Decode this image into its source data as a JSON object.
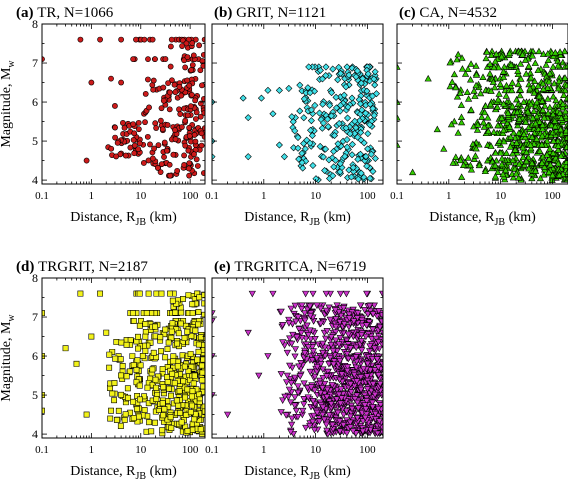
{
  "chart_data": [
    {
      "type": "scatter",
      "panel_label": "(a)",
      "title": "TR, N=1066",
      "xlabel": "Distance, R_JB (km)",
      "ylabel": "Magnitude, M_w",
      "xscale": "log",
      "xlim": [
        0.1,
        200
      ],
      "ylim": [
        3.9,
        8
      ],
      "xticks": [
        "0.1",
        "1",
        "10",
        "100"
      ],
      "yticks": [
        "4",
        "5",
        "6",
        "7",
        "8"
      ],
      "marker": "circle",
      "color": "#cc1a1a",
      "series": [
        {
          "x": 0.1,
          "y": 7.1
        },
        {
          "x": 0.6,
          "y": 7.6
        },
        {
          "x": 0.8,
          "y": 4.5
        },
        {
          "x": 1.0,
          "y": 6.5
        },
        {
          "x": 1.5,
          "y": 7.6
        },
        {
          "x": 2.5,
          "y": 6.6
        },
        {
          "x": 4.0,
          "y": 6.5
        },
        {
          "x": 4.0,
          "y": 7.6
        },
        {
          "x": 7.0,
          "y": 7.1
        },
        {
          "x": 8.0,
          "y": 7.6
        },
        {
          "x": 3.0,
          "y": 5.9
        }
      ],
      "density_regions": [
        {
          "x_range": [
            10,
            200
          ],
          "y_range": [
            4.1,
            6.6
          ],
          "n": 180
        },
        {
          "x_range": [
            2,
            10
          ],
          "y_range": [
            4.6,
            5.5
          ],
          "n": 45
        },
        {
          "x_range": [
            30,
            200
          ],
          "y_range": [
            6.8,
            7.6
          ],
          "n": 24
        }
      ],
      "x_lines": [
        7.6,
        7.1
      ]
    },
    {
      "type": "scatter",
      "panel_label": "(b)",
      "title": "GRIT, N=1121",
      "xlabel": "Distance, R_JB (km)",
      "ylabel": "",
      "xscale": "log",
      "xlim": [
        0.1,
        200
      ],
      "ylim": [
        3.9,
        8
      ],
      "xticks": [
        "0.1",
        "1",
        "10",
        "100"
      ],
      "yticks": [],
      "marker": "diamond",
      "color": "#40e0e8",
      "series": [
        {
          "x": 0.1,
          "y": 6.0
        },
        {
          "x": 0.1,
          "y": 5.0
        },
        {
          "x": 0.1,
          "y": 4.6
        },
        {
          "x": 0.4,
          "y": 6.1
        },
        {
          "x": 0.5,
          "y": 5.6
        },
        {
          "x": 0.5,
          "y": 4.6
        },
        {
          "x": 0.9,
          "y": 6.1
        },
        {
          "x": 1.2,
          "y": 6.3
        },
        {
          "x": 1.5,
          "y": 5.7
        },
        {
          "x": 2.0,
          "y": 6.3
        },
        {
          "x": 2.0,
          "y": 4.9
        },
        {
          "x": 2.5,
          "y": 4.6
        }
      ],
      "density_regions": [
        {
          "x_range": [
            10,
            150
          ],
          "y_range": [
            4.0,
            6.9
          ],
          "n": 230
        },
        {
          "x_range": [
            3,
            10
          ],
          "y_range": [
            4.3,
            6.5
          ],
          "n": 50
        }
      ],
      "x_lines": [
        6.9
      ]
    },
    {
      "type": "scatter",
      "panel_label": "(c)",
      "title": "CA, N=4532",
      "xlabel": "Distance, R_JB (km)",
      "ylabel": "",
      "xscale": "log",
      "xlim": [
        0.1,
        200
      ],
      "ylim": [
        3.9,
        8
      ],
      "xticks": [
        "0.1",
        "1",
        "10",
        "100"
      ],
      "yticks": [],
      "marker": "triangle-up",
      "color": "#33cc00",
      "series": [
        {
          "x": 0.1,
          "y": 6.9
        },
        {
          "x": 0.1,
          "y": 6.0
        },
        {
          "x": 0.1,
          "y": 5.6
        },
        {
          "x": 0.1,
          "y": 4.9
        },
        {
          "x": 0.2,
          "y": 4.2
        },
        {
          "x": 0.4,
          "y": 6.6
        },
        {
          "x": 0.6,
          "y": 5.3
        },
        {
          "x": 0.8,
          "y": 4.8
        }
      ],
      "density_regions": [
        {
          "x_range": [
            1,
            200
          ],
          "y_range": [
            4.0,
            7.3
          ],
          "n": 380
        },
        {
          "x_range": [
            10,
            200
          ],
          "y_range": [
            4.0,
            5.8
          ],
          "n": 200
        }
      ],
      "x_lines": [
        7.3,
        7.2,
        6.9,
        6.6,
        6.3,
        6.0,
        5.9,
        5.6,
        5.4,
        5.2,
        4.9,
        4.7,
        4.5,
        4.3
      ]
    },
    {
      "type": "scatter",
      "panel_label": "(d)",
      "title": "TRGRIT, N=2187",
      "xlabel": "Distance, R_JB (km)",
      "ylabel": "Magnitude, M_w",
      "xscale": "log",
      "xlim": [
        0.1,
        200
      ],
      "ylim": [
        3.9,
        8
      ],
      "xticks": [
        "0.1",
        "1",
        "10",
        "100"
      ],
      "yticks": [
        "4",
        "5",
        "6",
        "7",
        "8"
      ],
      "marker": "square",
      "color": "#f2f21a",
      "series": [
        {
          "x": 0.1,
          "y": 7.1
        },
        {
          "x": 0.1,
          "y": 6.0
        },
        {
          "x": 0.1,
          "y": 5.0
        },
        {
          "x": 0.1,
          "y": 4.6
        },
        {
          "x": 0.3,
          "y": 6.2
        },
        {
          "x": 0.5,
          "y": 5.8
        },
        {
          "x": 0.6,
          "y": 7.6
        },
        {
          "x": 0.8,
          "y": 4.5
        },
        {
          "x": 1.0,
          "y": 6.5
        },
        {
          "x": 1.5,
          "y": 7.6
        },
        {
          "x": 2.0,
          "y": 6.6
        },
        {
          "x": 2.5,
          "y": 4.6
        }
      ],
      "density_regions": [
        {
          "x_range": [
            8,
            200
          ],
          "y_range": [
            4.0,
            6.9
          ],
          "n": 360
        },
        {
          "x_range": [
            2,
            10
          ],
          "y_range": [
            4.2,
            6.5
          ],
          "n": 70
        },
        {
          "x_range": [
            30,
            200
          ],
          "y_range": [
            7.0,
            7.6
          ],
          "n": 24
        }
      ],
      "x_lines": [
        7.6,
        7.1,
        6.9
      ]
    },
    {
      "type": "scatter",
      "panel_label": "(e)",
      "title": "TRGRITCA, N=6719",
      "xlabel": "Distance, R_JB (km)",
      "ylabel": "",
      "xscale": "log",
      "xlim": [
        0.1,
        200
      ],
      "ylim": [
        3.9,
        8
      ],
      "xticks": [
        "0.1",
        "1",
        "10",
        "100"
      ],
      "yticks": [],
      "marker": "triangle-down",
      "color": "#cc33cc",
      "series": [
        {
          "x": 0.1,
          "y": 7.1
        },
        {
          "x": 0.1,
          "y": 6.9
        },
        {
          "x": 0.1,
          "y": 6.0
        },
        {
          "x": 0.1,
          "y": 5.0
        },
        {
          "x": 0.2,
          "y": 4.5
        },
        {
          "x": 0.5,
          "y": 6.6
        },
        {
          "x": 0.6,
          "y": 7.6
        },
        {
          "x": 0.8,
          "y": 5.5
        },
        {
          "x": 1.2,
          "y": 6.0
        },
        {
          "x": 1.5,
          "y": 7.6
        }
      ],
      "density_regions": [
        {
          "x_range": [
            2,
            200
          ],
          "y_range": [
            4.0,
            7.3
          ],
          "n": 600
        },
        {
          "x_range": [
            10,
            200
          ],
          "y_range": [
            4.0,
            6.0
          ],
          "n": 250
        }
      ],
      "x_lines": [
        7.6,
        7.3,
        7.1,
        6.9,
        6.6,
        6.3,
        6.0,
        5.6,
        5.2,
        4.9,
        4.5
      ]
    }
  ]
}
